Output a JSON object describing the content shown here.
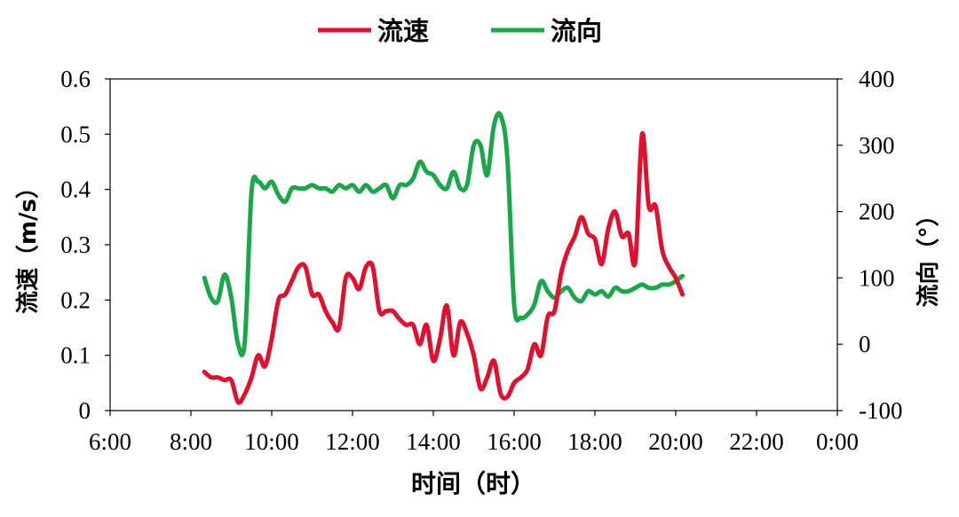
{
  "chart_data": {
    "type": "line",
    "xlabel": "时间（时）",
    "ylabel_left": "流速（m/s）",
    "ylabel_right": "流向（°）",
    "xlim_hours": [
      6,
      24
    ],
    "ylim_left": [
      0,
      0.6
    ],
    "ylim_right": [
      -100,
      400
    ],
    "x_ticks": [
      "6:00",
      "8:00",
      "10:00",
      "12:00",
      "14:00",
      "16:00",
      "18:00",
      "20:00",
      "22:00",
      "0:00"
    ],
    "y_ticks_left": [
      "0",
      "0.1",
      "0.2",
      "0.3",
      "0.4",
      "0.5",
      "0.6"
    ],
    "y_ticks_right": [
      "-100",
      "0",
      "100",
      "200",
      "300",
      "400"
    ],
    "legend_position": "top-center",
    "series": [
      {
        "name": "流速",
        "axis": "left",
        "color": "#e0102e",
        "points": [
          [
            "8:20",
            0.07
          ],
          [
            "8:30",
            0.06
          ],
          [
            "8:40",
            0.06
          ],
          [
            "8:50",
            0.055
          ],
          [
            "9:00",
            0.055
          ],
          [
            "9:10",
            0.015
          ],
          [
            "9:20",
            0.03
          ],
          [
            "9:30",
            0.06
          ],
          [
            "9:40",
            0.1
          ],
          [
            "9:50",
            0.08
          ],
          [
            "10:00",
            0.13
          ],
          [
            "10:10",
            0.2
          ],
          [
            "10:20",
            0.21
          ],
          [
            "10:30",
            0.235
          ],
          [
            "10:40",
            0.26
          ],
          [
            "10:50",
            0.26
          ],
          [
            "11:00",
            0.21
          ],
          [
            "11:10",
            0.21
          ],
          [
            "11:20",
            0.18
          ],
          [
            "11:30",
            0.16
          ],
          [
            "11:40",
            0.15
          ],
          [
            "11:50",
            0.24
          ],
          [
            "12:00",
            0.24
          ],
          [
            "12:10",
            0.22
          ],
          [
            "12:20",
            0.26
          ],
          [
            "12:30",
            0.26
          ],
          [
            "12:40",
            0.18
          ],
          [
            "12:50",
            0.18
          ],
          [
            "13:00",
            0.18
          ],
          [
            "13:10",
            0.165
          ],
          [
            "13:20",
            0.155
          ],
          [
            "13:30",
            0.155
          ],
          [
            "13:40",
            0.12
          ],
          [
            "13:50",
            0.155
          ],
          [
            "14:00",
            0.09
          ],
          [
            "14:10",
            0.13
          ],
          [
            "14:20",
            0.19
          ],
          [
            "14:30",
            0.1
          ],
          [
            "14:40",
            0.16
          ],
          [
            "14:50",
            0.14
          ],
          [
            "15:00",
            0.1
          ],
          [
            "15:10",
            0.04
          ],
          [
            "15:20",
            0.06
          ],
          [
            "15:30",
            0.09
          ],
          [
            "15:40",
            0.03
          ],
          [
            "15:50",
            0.025
          ],
          [
            "16:00",
            0.05
          ],
          [
            "16:10",
            0.06
          ],
          [
            "16:20",
            0.075
          ],
          [
            "16:30",
            0.12
          ],
          [
            "16:40",
            0.1
          ],
          [
            "16:50",
            0.17
          ],
          [
            "17:00",
            0.18
          ],
          [
            "17:10",
            0.25
          ],
          [
            "17:20",
            0.29
          ],
          [
            "17:30",
            0.315
          ],
          [
            "17:40",
            0.35
          ],
          [
            "17:50",
            0.32
          ],
          [
            "18:00",
            0.31
          ],
          [
            "18:10",
            0.265
          ],
          [
            "18:20",
            0.33
          ],
          [
            "18:30",
            0.36
          ],
          [
            "18:40",
            0.315
          ],
          [
            "18:50",
            0.32
          ],
          [
            "19:00",
            0.27
          ],
          [
            "19:10",
            0.5
          ],
          [
            "19:20",
            0.37
          ],
          [
            "19:30",
            0.37
          ],
          [
            "19:40",
            0.29
          ],
          [
            "19:50",
            0.26
          ],
          [
            "20:00",
            0.24
          ],
          [
            "20:10",
            0.21
          ]
        ]
      },
      {
        "name": "流向",
        "axis": "right",
        "color": "#1aa74a",
        "points": [
          [
            "8:20",
            100
          ],
          [
            "8:30",
            70
          ],
          [
            "8:40",
            65
          ],
          [
            "8:50",
            105
          ],
          [
            "9:00",
            70
          ],
          [
            "9:10",
            0
          ],
          [
            "9:20",
            5
          ],
          [
            "9:30",
            230
          ],
          [
            "9:40",
            245
          ],
          [
            "9:50",
            235
          ],
          [
            "10:00",
            245
          ],
          [
            "10:10",
            225
          ],
          [
            "10:20",
            215
          ],
          [
            "10:30",
            235
          ],
          [
            "10:40",
            235
          ],
          [
            "10:50",
            235
          ],
          [
            "11:00",
            240
          ],
          [
            "11:10",
            235
          ],
          [
            "11:20",
            235
          ],
          [
            "11:30",
            230
          ],
          [
            "11:40",
            240
          ],
          [
            "11:50",
            235
          ],
          [
            "12:00",
            240
          ],
          [
            "12:10",
            230
          ],
          [
            "12:20",
            240
          ],
          [
            "12:30",
            230
          ],
          [
            "12:40",
            235
          ],
          [
            "12:50",
            240
          ],
          [
            "13:00",
            220
          ],
          [
            "13:10",
            240
          ],
          [
            "13:20",
            240
          ],
          [
            "13:30",
            250
          ],
          [
            "13:40",
            275
          ],
          [
            "13:50",
            260
          ],
          [
            "14:00",
            255
          ],
          [
            "14:10",
            240
          ],
          [
            "14:20",
            235
          ],
          [
            "14:30",
            260
          ],
          [
            "14:40",
            235
          ],
          [
            "14:50",
            240
          ],
          [
            "15:00",
            300
          ],
          [
            "15:10",
            300
          ],
          [
            "15:20",
            255
          ],
          [
            "15:30",
            330
          ],
          [
            "15:40",
            345
          ],
          [
            "15:50",
            280
          ],
          [
            "16:00",
            60
          ],
          [
            "16:10",
            40
          ],
          [
            "16:20",
            45
          ],
          [
            "16:30",
            60
          ],
          [
            "16:40",
            95
          ],
          [
            "16:50",
            80
          ],
          [
            "17:00",
            70
          ],
          [
            "17:10",
            80
          ],
          [
            "17:20",
            85
          ],
          [
            "17:30",
            70
          ],
          [
            "17:40",
            65
          ],
          [
            "17:50",
            80
          ],
          [
            "18:00",
            75
          ],
          [
            "18:10",
            80
          ],
          [
            "18:20",
            72
          ],
          [
            "18:30",
            85
          ],
          [
            "18:40",
            80
          ],
          [
            "18:50",
            80
          ],
          [
            "19:00",
            85
          ],
          [
            "19:10",
            90
          ],
          [
            "19:20",
            85
          ],
          [
            "19:30",
            85
          ],
          [
            "19:40",
            90
          ],
          [
            "19:50",
            90
          ],
          [
            "20:00",
            95
          ],
          [
            "20:10",
            103
          ]
        ]
      }
    ]
  }
}
